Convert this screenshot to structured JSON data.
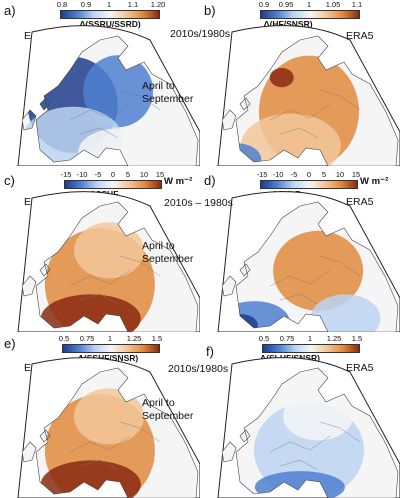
{
  "shared": {
    "period_ratio": "2010s/1980s",
    "period_diff": "2010s – 1980s",
    "season": [
      "April to",
      "September"
    ],
    "source": "ERA5"
  },
  "panels": [
    {
      "label": "a)",
      "variable": "Δ(SSRU/SSRD)",
      "unit": "",
      "ticks": [
        "0.8",
        "0.9",
        "1",
        "1.1",
        "1.20"
      ],
      "palette": "bwr",
      "field": "blue-north"
    },
    {
      "label": "b)",
      "variable": "Δ(HF/SNSR)",
      "unit": "",
      "ticks": [
        "0.9",
        "0.95",
        "1",
        "1.05",
        "1.1"
      ],
      "palette": "bwr",
      "field": "orange-broad"
    },
    {
      "label": "c)",
      "variable": "ΔSSHF",
      "unit": "W m⁻²",
      "ticks": [
        "-15",
        "-10",
        "-5",
        "0",
        "5",
        "10",
        "15"
      ],
      "palette": "bwr",
      "field": "orange-strong"
    },
    {
      "label": "d)",
      "variable": "ΔSHLF",
      "unit": "W m⁻²",
      "ticks": [
        "-15",
        "-10",
        "-5",
        "0",
        "5",
        "10",
        "15"
      ],
      "palette": "bwr",
      "field": "mixed-south-blue"
    },
    {
      "label": "e)",
      "variable": "Δ(SSHF/SNSR)",
      "unit": "",
      "ticks": [
        "0.5",
        "0.75",
        "1",
        "1.25",
        "1.5"
      ],
      "palette": "bwr",
      "field": "orange-strong"
    },
    {
      "label": "f)",
      "variable": "Δ(SLHF/SNSR)",
      "unit": "",
      "ticks": [
        "0.5",
        "0.75",
        "1",
        "1.25",
        "1.5"
      ],
      "palette": "bwr",
      "field": "blue-light"
    }
  ],
  "colors": {
    "deep_blue": "#1f3d8c",
    "blue": "#4f7fd0",
    "light_blue": "#bcd3f2",
    "white": "#f5f5f5",
    "light_orange": "#f2c79a",
    "orange": "#e08a3c",
    "deep_red": "#8a2a12"
  }
}
